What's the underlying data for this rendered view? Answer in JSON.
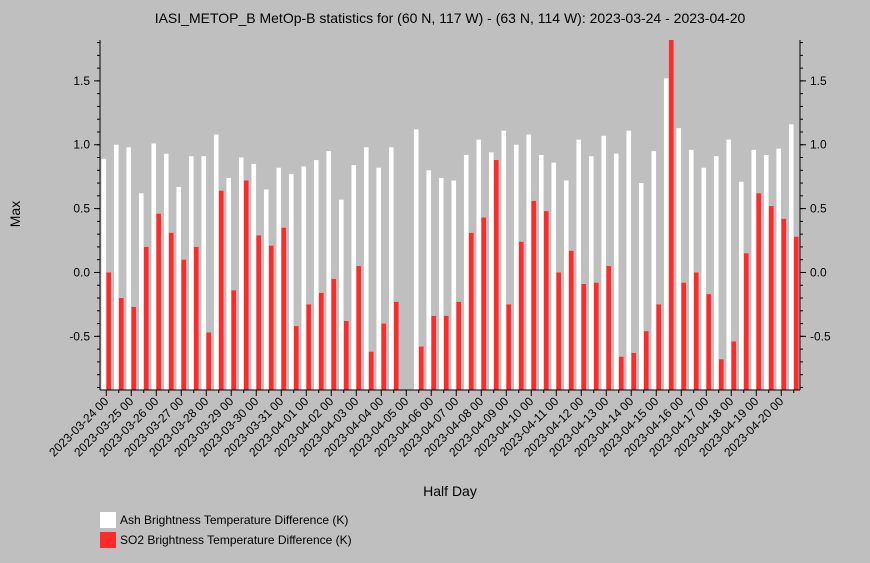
{
  "chart_data": {
    "type": "bar",
    "title": "IASI_METOP_B MetOp-B statistics for (60 N, 117 W) - (63 N, 114 W): 2023-03-24 - 2023-04-20",
    "xlabel": "Half Day",
    "ylabel": "Max",
    "ylim": [
      -0.92,
      1.82
    ],
    "yticks": [
      -0.5,
      0.0,
      0.5,
      1.0,
      1.5
    ],
    "ytick_labels": [
      "-0.5",
      "0.0",
      "0.5",
      "1.0",
      "1.5"
    ],
    "grid": false,
    "legend_position": "bottom-left",
    "x_tick_labels": [
      "2023-03-24 00",
      "2023-03-25 00",
      "2023-03-26 00",
      "2023-03-27 00",
      "2023-03-28 00",
      "2023-03-29 00",
      "2023-03-30 00",
      "2023-03-31 00",
      "2023-04-01 00",
      "2023-04-02 00",
      "2023-04-03 00",
      "2023-04-04 00",
      "2023-04-05 00",
      "2023-04-06 00",
      "2023-04-07 00",
      "2023-04-08 00",
      "2023-04-09 00",
      "2023-04-10 00",
      "2023-04-11 00",
      "2023-04-12 00",
      "2023-04-13 00",
      "2023-04-14 00",
      "2023-04-15 00",
      "2023-04-16 00",
      "2023-04-17 00",
      "2023-04-18 00",
      "2023-04-19 00",
      "2023-04-20 00"
    ],
    "series": [
      {
        "name": "Ash Brightness Temperature Difference (K)",
        "color": "#ffffff",
        "values": [
          0.89,
          1.0,
          0.98,
          0.62,
          1.01,
          0.93,
          0.67,
          0.91,
          0.91,
          1.08,
          0.74,
          0.9,
          0.85,
          0.65,
          0.82,
          0.77,
          0.83,
          0.88,
          0.95,
          0.57,
          0.84,
          0.98,
          0.82,
          0.98,
          null,
          1.12,
          0.8,
          0.74,
          0.72,
          0.92,
          1.04,
          0.94,
          1.11,
          1.0,
          1.08,
          0.92,
          0.86,
          0.72,
          1.04,
          0.91,
          1.07,
          0.93,
          1.11,
          0.7,
          0.95,
          1.52,
          1.13,
          0.96,
          0.82,
          0.91,
          1.04,
          0.71,
          0.96,
          0.92,
          0.97,
          1.16
        ]
      },
      {
        "name": "SO2 Brightness Temperature Difference (K)",
        "color": "#ff2a2a",
        "values": [
          0.0,
          -0.2,
          -0.27,
          0.2,
          0.46,
          0.31,
          0.1,
          0.2,
          -0.47,
          0.64,
          -0.14,
          0.72,
          0.29,
          0.21,
          0.35,
          -0.42,
          -0.25,
          -0.16,
          -0.05,
          -0.38,
          0.05,
          -0.62,
          -0.4,
          -0.23,
          null,
          -0.58,
          -0.34,
          -0.34,
          -0.23,
          0.31,
          0.43,
          0.88,
          -0.25,
          0.24,
          0.56,
          0.48,
          0.0,
          0.17,
          -0.09,
          -0.08,
          0.05,
          -0.66,
          -0.63,
          -0.46,
          -0.25,
          1.82,
          -0.08,
          0.0,
          -0.17,
          -0.68,
          -0.54,
          0.15,
          0.62,
          0.52,
          0.42,
          0.28
        ]
      }
    ]
  }
}
